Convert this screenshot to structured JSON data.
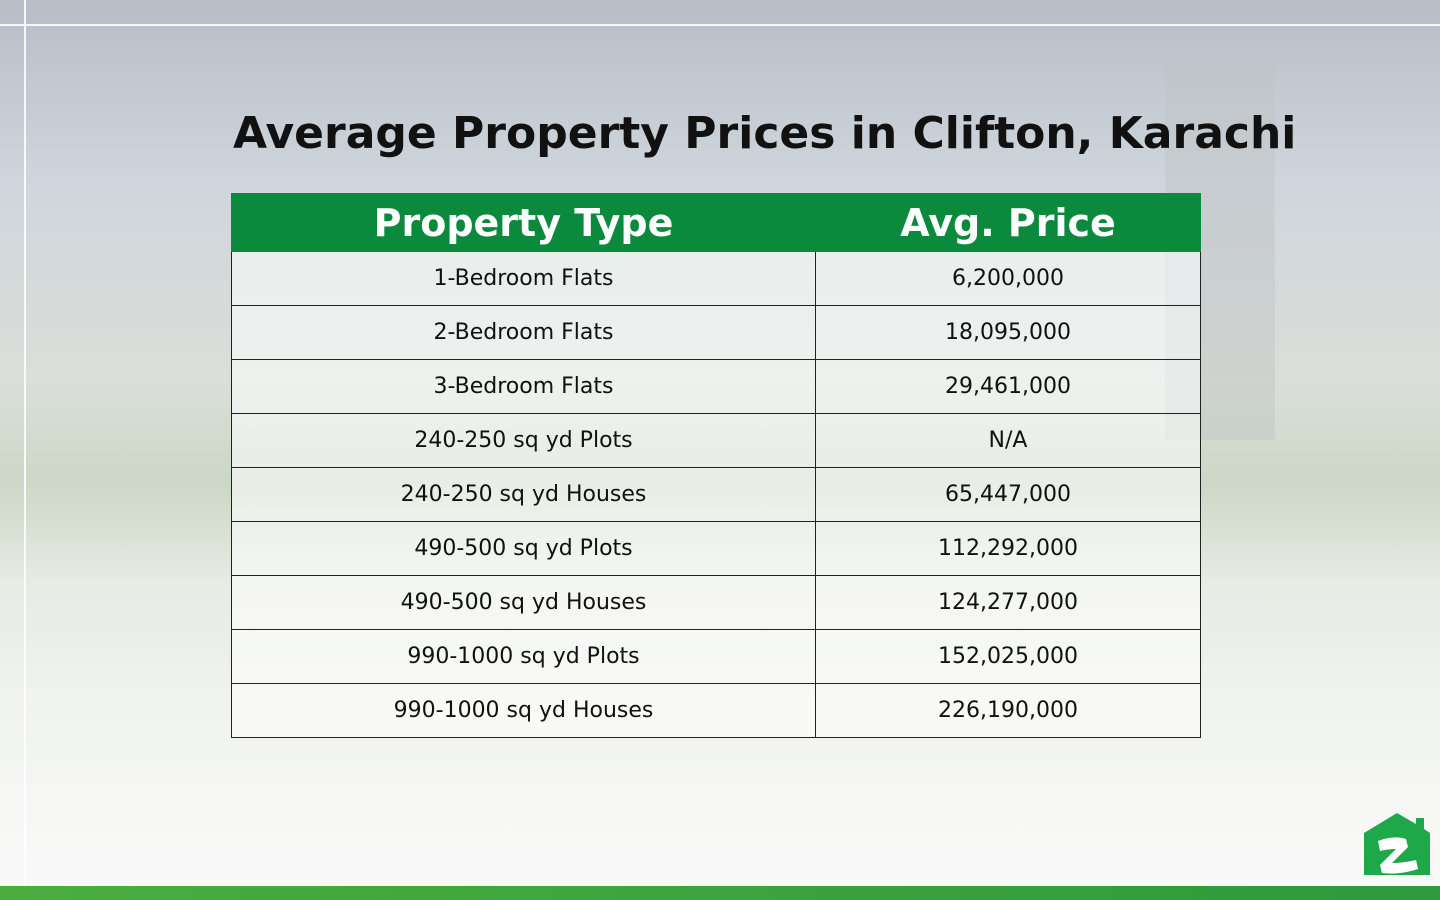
{
  "title": "Average Property Prices in Clifton, Karachi",
  "table": {
    "headers": [
      "Property Type",
      "Avg. Price"
    ],
    "rows": [
      {
        "type": "1-Bedroom Flats",
        "price": "6,200,000"
      },
      {
        "type": "2-Bedroom Flats",
        "price": "18,095,000"
      },
      {
        "type": "3-Bedroom Flats",
        "price": "29,461,000"
      },
      {
        "type": "240-250 sq yd Plots",
        "price": "N/A"
      },
      {
        "type": "240-250 sq yd Houses",
        "price": "65,447,000"
      },
      {
        "type": "490-500 sq yd Plots",
        "price": "112,292,000"
      },
      {
        "type": "490-500 sq yd Houses",
        "price": "124,277,000"
      },
      {
        "type": "990-1000 sq yd Plots",
        "price": "152,025,000"
      },
      {
        "type": "990-1000 sq yd Houses",
        "price": "226,190,000"
      }
    ]
  },
  "colors": {
    "header": "#0b8a3d",
    "bar": "#4aae3f",
    "logo": "#1fa84a"
  },
  "logo": {
    "icon": "zameen-house-z-logo"
  }
}
